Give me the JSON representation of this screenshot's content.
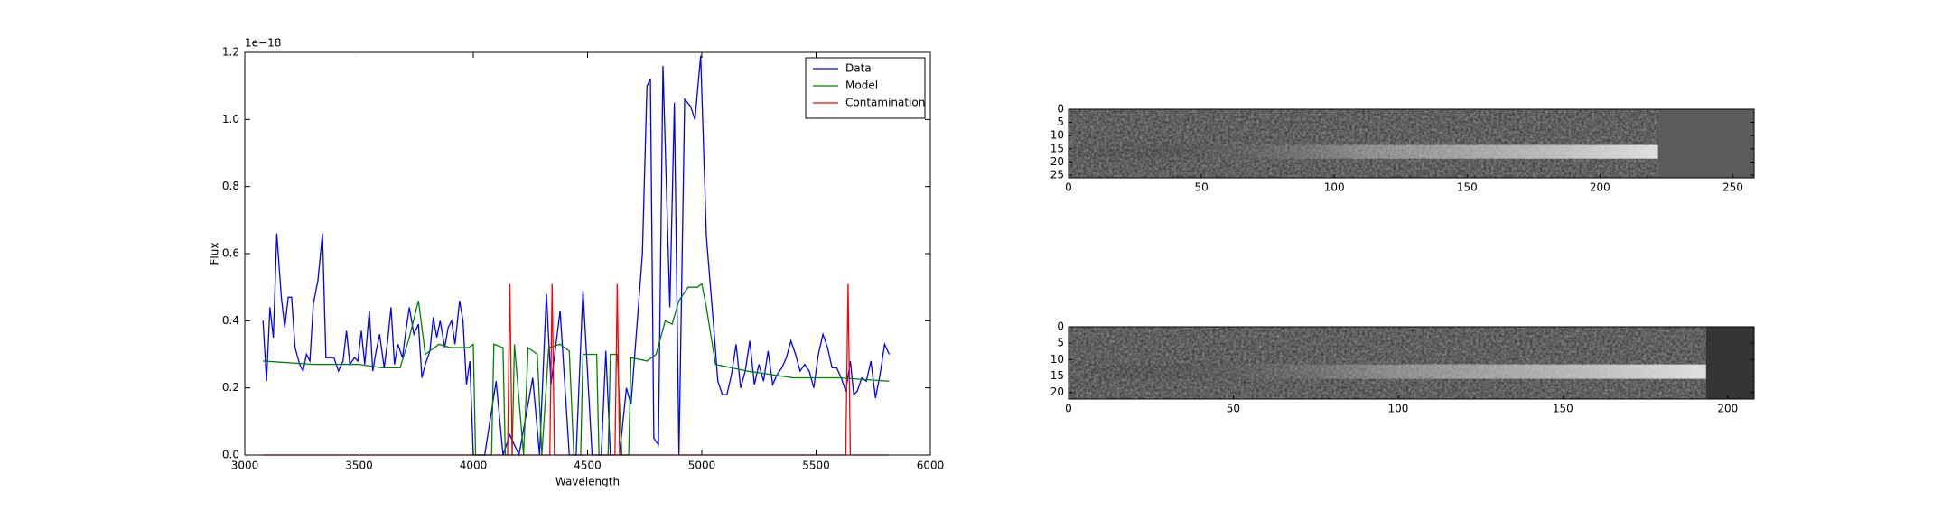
{
  "chart_data": [
    {
      "type": "line",
      "xlabel": "Wavelength",
      "ylabel": "Flux",
      "offset_label": "1e−18",
      "xlim": [
        3000,
        6000
      ],
      "xticks": [
        3000,
        3500,
        4000,
        4500,
        5000,
        5500,
        6000
      ],
      "ylim": [
        0,
        1.2
      ],
      "yticks": [
        {
          "value": 0,
          "label": "0.0"
        },
        0.2,
        0.4,
        0.6,
        0.8,
        {
          "value": 1,
          "label": "1.0"
        },
        1.2
      ],
      "legend": "upper right",
      "series": [
        {
          "name": "Data",
          "color": "#0000ff",
          "x": [
            3080,
            3095,
            3110,
            3125,
            3140,
            3160,
            3175,
            3190,
            3205,
            3220,
            3240,
            3255,
            3270,
            3285,
            3300,
            3320,
            3340,
            3355,
            3375,
            3390,
            3410,
            3430,
            3445,
            3460,
            3480,
            3495,
            3510,
            3525,
            3545,
            3560,
            3575,
            3590,
            3610,
            3625,
            3640,
            3655,
            3670,
            3690,
            3705,
            3720,
            3740,
            3760,
            3775,
            3790,
            3810,
            3825,
            3840,
            3855,
            3875,
            3890,
            3905,
            3920,
            3940,
            3955,
            3970,
            3985,
            4000,
            4050,
            4100,
            4130,
            4160,
            4200,
            4260,
            4290,
            4320,
            4340,
            4380,
            4420,
            4450,
            4480,
            4520,
            4560,
            4580,
            4600,
            4640,
            4670,
            4690,
            4740,
            4760,
            4775,
            4790,
            4810,
            4830,
            4860,
            4880,
            4900,
            4925,
            4950,
            4970,
            4995,
            5020,
            5050,
            5070,
            5090,
            5110,
            5130,
            5150,
            5170,
            5190,
            5210,
            5230,
            5250,
            5270,
            5290,
            5310,
            5330,
            5350,
            5370,
            5390,
            5410,
            5430,
            5450,
            5470,
            5490,
            5510,
            5530,
            5550,
            5570,
            5590,
            5610,
            5630,
            5650,
            5665,
            5680,
            5700,
            5720,
            5740,
            5760,
            5780,
            5800,
            5820
          ],
          "values": [
            0.4,
            0.22,
            0.44,
            0.35,
            0.66,
            0.47,
            0.38,
            0.47,
            0.47,
            0.32,
            0.27,
            0.25,
            0.3,
            0.28,
            0.45,
            0.52,
            0.66,
            0.29,
            0.29,
            0.29,
            0.25,
            0.28,
            0.37,
            0.27,
            0.29,
            0.28,
            0.37,
            0.27,
            0.43,
            0.25,
            0.31,
            0.36,
            0.26,
            0.34,
            0.44,
            0.27,
            0.33,
            0.29,
            0.37,
            0.44,
            0.36,
            0.39,
            0.23,
            0.27,
            0.31,
            0.41,
            0.35,
            0.4,
            0.32,
            0.38,
            0.4,
            0.33,
            0.46,
            0.4,
            0.21,
            0.28,
            0.0,
            0.0,
            0.22,
            0.0,
            0.06,
            0.0,
            0.23,
            0.0,
            0.48,
            0.21,
            0.43,
            0.0,
            0.0,
            0.49,
            0.0,
            0.0,
            0.31,
            0.0,
            0.0,
            0.2,
            0.15,
            0.6,
            1.1,
            1.12,
            0.05,
            0.03,
            1.16,
            0.44,
            1.05,
            0.0,
            1.06,
            1.04,
            1.0,
            1.19,
            0.65,
            0.4,
            0.22,
            0.18,
            0.18,
            0.24,
            0.33,
            0.2,
            0.25,
            0.34,
            0.21,
            0.27,
            0.22,
            0.31,
            0.21,
            0.24,
            0.26,
            0.29,
            0.34,
            0.3,
            0.25,
            0.27,
            0.25,
            0.2,
            0.3,
            0.36,
            0.32,
            0.26,
            0.26,
            0.23,
            0.19,
            0.28,
            0.18,
            0.19,
            0.23,
            0.22,
            0.28,
            0.17,
            0.24,
            0.33,
            0.3
          ]
        },
        {
          "name": "Model",
          "color": "#008000",
          "x": [
            3080,
            3300,
            3500,
            3600,
            3680,
            3720,
            3760,
            3790,
            3850,
            3900,
            3980,
            4000,
            4010,
            4080,
            4090,
            4130,
            4140,
            4170,
            4180,
            4220,
            4240,
            4280,
            4300,
            4330,
            4380,
            4420,
            4440,
            4470,
            4480,
            4540,
            4550,
            4590,
            4600,
            4630,
            4650,
            4680,
            4690,
            4760,
            4800,
            4840,
            4870,
            4900,
            4940,
            4980,
            5000,
            5020,
            5060,
            5200,
            5400,
            5600,
            5820
          ],
          "values": [
            0.28,
            0.27,
            0.27,
            0.26,
            0.26,
            0.35,
            0.46,
            0.3,
            0.33,
            0.32,
            0.32,
            0.33,
            0.0,
            0.0,
            0.33,
            0.32,
            0.0,
            0.0,
            0.33,
            0.0,
            0.32,
            0.3,
            0.0,
            0.32,
            0.33,
            0.31,
            0.0,
            0.0,
            0.3,
            0.3,
            0.0,
            0.0,
            0.3,
            0.3,
            0.0,
            0.0,
            0.29,
            0.28,
            0.3,
            0.4,
            0.39,
            0.46,
            0.5,
            0.5,
            0.51,
            0.44,
            0.27,
            0.25,
            0.23,
            0.23,
            0.22
          ]
        },
        {
          "name": "Contamination",
          "color": "#ff0000",
          "x": [
            3080,
            4150,
            4160,
            4170,
            4335,
            4345,
            4355,
            4620,
            4630,
            4640,
            5630,
            5640,
            5650,
            5820
          ],
          "values": [
            0,
            0,
            0.51,
            0,
            0,
            0.51,
            0,
            0,
            0.51,
            0,
            0,
            0.51,
            0,
            0
          ]
        }
      ]
    },
    {
      "type": "image",
      "xlim": [
        0,
        258
      ],
      "xticks": [
        0,
        50,
        100,
        150,
        200,
        250
      ],
      "ylim": [
        0,
        26
      ],
      "yticks": [
        0,
        5,
        10,
        15,
        20,
        25
      ]
    },
    {
      "type": "image",
      "xlim": [
        0,
        208
      ],
      "xticks": [
        0,
        50,
        100,
        150,
        200
      ],
      "ylim": [
        0,
        22
      ],
      "yticks": [
        0,
        5,
        10,
        15,
        20
      ]
    }
  ]
}
